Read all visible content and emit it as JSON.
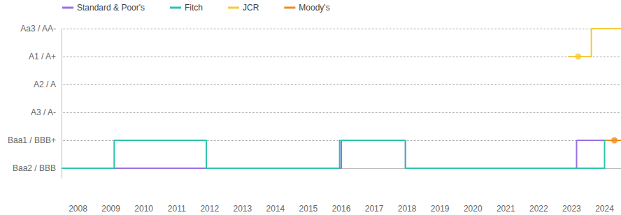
{
  "chart_data": {
    "type": "line",
    "legend": "top-left",
    "grid": true,
    "xlim": [
      2007.5,
      2024.5
    ],
    "xticks": [
      2008,
      2009,
      2010,
      2011,
      2012,
      2013,
      2014,
      2015,
      2016,
      2017,
      2018,
      2019,
      2020,
      2021,
      2022,
      2023,
      2024
    ],
    "ylim": [
      -0.35,
      5
    ],
    "yticks": [
      {
        "value": 0,
        "label": "Baa2 / BBB"
      },
      {
        "value": 1,
        "label": "Baa1 / BBB+"
      },
      {
        "value": 2,
        "label": "A3 / A-"
      },
      {
        "value": 3,
        "label": "A2 / A"
      },
      {
        "value": 4,
        "label": "A1 / A+"
      },
      {
        "value": 5,
        "label": "Aa3 / AA-"
      }
    ],
    "series": [
      {
        "name": "Standard & Poor's",
        "color": "#9b6fe3",
        "line_style": "solid",
        "x": [
          2007.5,
          2016.0,
          2016.0,
          2017.95,
          2017.95,
          2023.15,
          2023.15,
          2024.5
        ],
        "values": [
          0,
          0,
          1,
          1,
          0,
          0,
          1,
          1
        ]
      },
      {
        "name": "Fitch",
        "color": "#2ec4ac",
        "line_style": "solid",
        "x": [
          2007.5,
          2009.1,
          2009.1,
          2011.9,
          2011.9,
          2015.95,
          2015.95,
          2017.95,
          2017.95,
          2024.0,
          2024.0,
          2024.5
        ],
        "values": [
          0,
          0,
          1,
          1,
          0,
          0,
          1,
          1,
          0,
          0,
          1,
          1
        ]
      },
      {
        "name": "JCR",
        "color": "#f5c93a",
        "line_style": "solid",
        "marker": "circle",
        "x": [
          2022.9,
          2023.6,
          2023.6,
          2024.5
        ],
        "values": [
          4,
          4,
          5,
          5
        ],
        "points": [
          [
            2023.2,
            4
          ]
        ]
      },
      {
        "name": "Moody's",
        "color": "#f28a1e",
        "line_style": "solid",
        "marker": "circle",
        "x": [
          2024.05,
          2024.5
        ],
        "values": [
          1,
          1
        ],
        "points": [
          [
            2024.3,
            1
          ]
        ]
      }
    ]
  }
}
